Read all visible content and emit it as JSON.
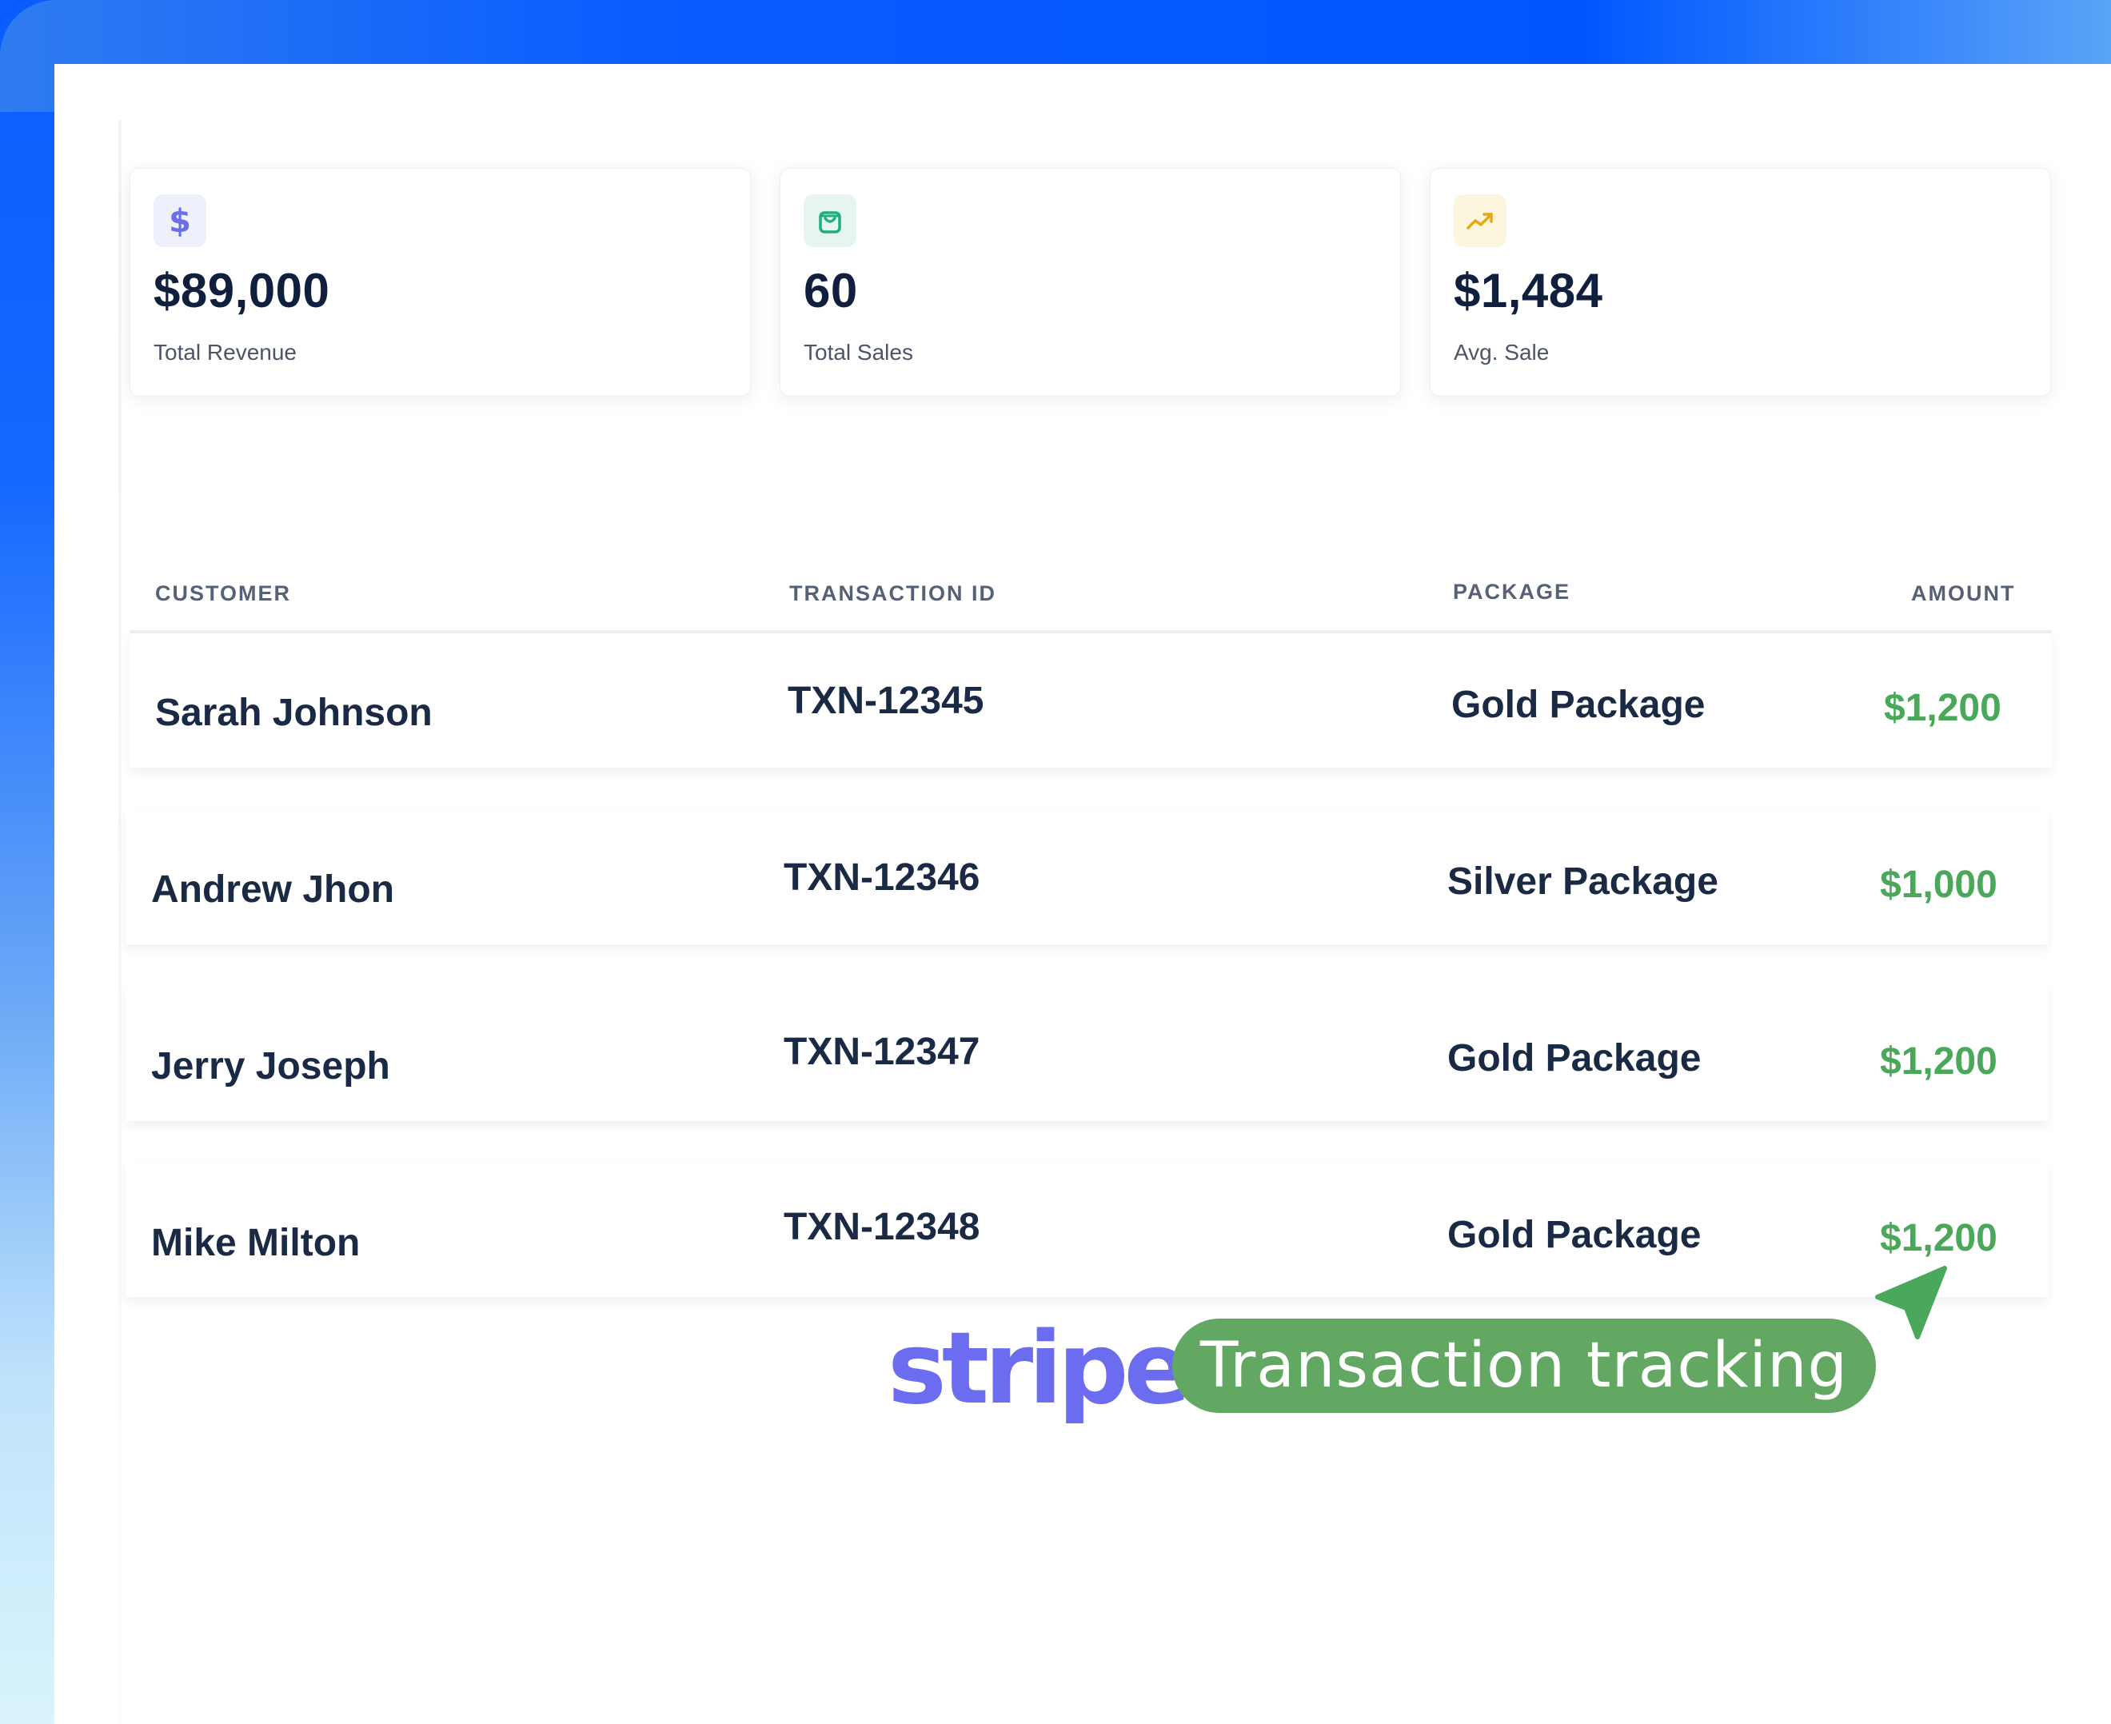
{
  "stats": [
    {
      "icon": "dollar-icon",
      "value": "$89,000",
      "label": "Total Revenue"
    },
    {
      "icon": "shopping-bag-icon",
      "value": "60",
      "label": "Total Sales"
    },
    {
      "icon": "trending-up-icon",
      "value": "$1,484",
      "label": "Avg. Sale"
    }
  ],
  "table": {
    "headers": {
      "customer": "CUSTOMER",
      "transaction_id": "TRANSACTION ID",
      "package": "PACKAGE",
      "amount": "AMOUNT"
    },
    "rows": [
      {
        "customer": "Sarah Johnson",
        "transaction_id": "TXN-12345",
        "package": "Gold Package",
        "amount": "$1,200"
      },
      {
        "customer": "Andrew Jhon",
        "transaction_id": "TXN-12346",
        "package": "Silver Package",
        "amount": "$1,000"
      },
      {
        "customer": "Jerry Joseph",
        "transaction_id": "TXN-12347",
        "package": "Gold Package",
        "amount": "$1,200"
      },
      {
        "customer": "Mike Milton",
        "transaction_id": "TXN-12348",
        "package": "Gold Package",
        "amount": "$1,200"
      }
    ]
  },
  "footer": {
    "logo_text": "stripe",
    "pill_label": "Transaction tracking"
  },
  "colors": {
    "brand_blue": "#0a5cff",
    "stripe_purple": "#6b6cf0",
    "amount_green": "#4aa85a",
    "pill_green": "#62a862"
  }
}
